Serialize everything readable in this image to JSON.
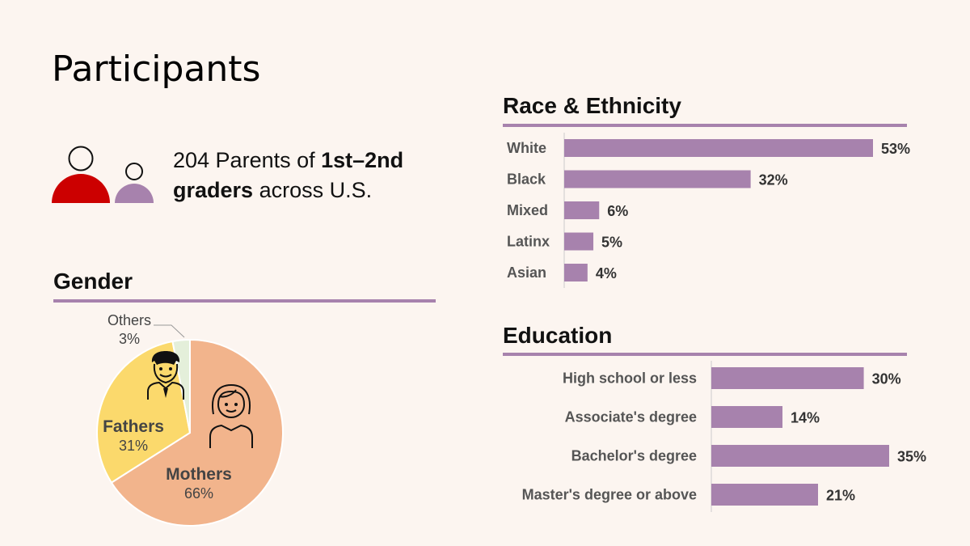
{
  "page": {
    "title": "Participants"
  },
  "intro": {
    "count_text": "204 Parents of ",
    "grades_bold": "1st–2nd graders",
    "suffix": " across U.S."
  },
  "colors": {
    "accent": "#a782ad",
    "red": "#cc0000",
    "mothers": "#f2b48c",
    "fathers": "#fbd96c",
    "others": "#e4efda"
  },
  "gender": {
    "title": "Gender",
    "labels": {
      "others": "Others",
      "others_pct": "3%",
      "fathers": "Fathers",
      "fathers_pct": "31%",
      "mothers": "Mothers",
      "mothers_pct": "66%"
    }
  },
  "race": {
    "title": "Race & Ethnicity"
  },
  "education": {
    "title": "Education"
  },
  "chart_data": [
    {
      "type": "pie",
      "title": "Gender",
      "slices": [
        {
          "label": "Mothers",
          "value": 66
        },
        {
          "label": "Fathers",
          "value": 31
        },
        {
          "label": "Others",
          "value": 3
        }
      ]
    },
    {
      "type": "bar",
      "orientation": "horizontal",
      "title": "Race & Ethnicity",
      "categories": [
        "White",
        "Black",
        "Mixed",
        "Latinx",
        "Asian"
      ],
      "values": [
        53,
        32,
        6,
        5,
        4
      ],
      "labels": [
        "53%",
        "32%",
        "6%",
        "5%",
        "4%"
      ],
      "xlim": [
        0,
        53
      ]
    },
    {
      "type": "bar",
      "orientation": "horizontal",
      "title": "Education",
      "categories": [
        "High school or less",
        "Associate's degree",
        "Bachelor's degree",
        "Master's degree or above"
      ],
      "values": [
        30,
        14,
        35,
        21
      ],
      "labels": [
        "30%",
        "14%",
        "35%",
        "21%"
      ],
      "xlim": [
        0,
        35
      ]
    }
  ]
}
